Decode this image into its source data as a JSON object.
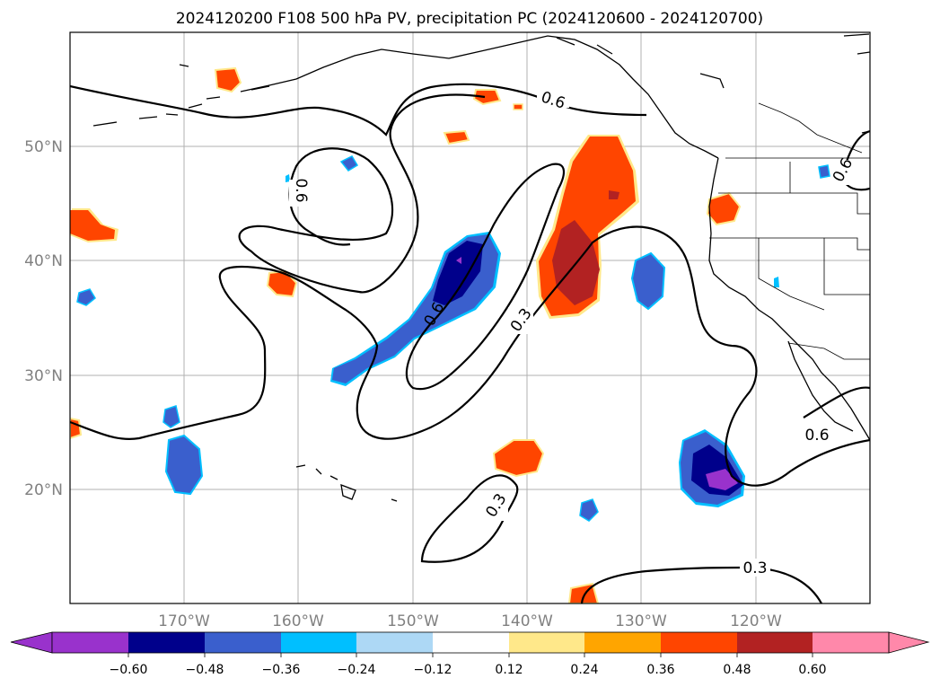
{
  "title": "2024120200 F108 500 hPa PV, precipitation PC (2024120600 - 2024120700)",
  "map": {
    "lon_labels": [
      "170°W",
      "160°W",
      "150°W",
      "140°W",
      "130°W",
      "120°W"
    ],
    "lat_labels": [
      "50°N",
      "40°N",
      "30°N",
      "20°N"
    ],
    "contour_labels": {
      "c1": "0.6",
      "c2": "0.6",
      "c3": "0.6",
      "c4": "0.3",
      "c5": "0.6",
      "c6": "0.3",
      "c7": "0.3",
      "c8": "0.6"
    }
  },
  "colorbar": {
    "ticks": [
      "−0.60",
      "−0.48",
      "−0.36",
      "−0.24",
      "−0.12",
      "0.12",
      "0.24",
      "0.36",
      "0.48",
      "0.60"
    ],
    "colors": [
      "#9932cc",
      "#00008b",
      "#3a5fcd",
      "#00bfff",
      "#add8f5",
      "#ffffff",
      "#ffe88a",
      "#ffa500",
      "#ff4500",
      "#b22222",
      "#ff88aa"
    ]
  }
}
